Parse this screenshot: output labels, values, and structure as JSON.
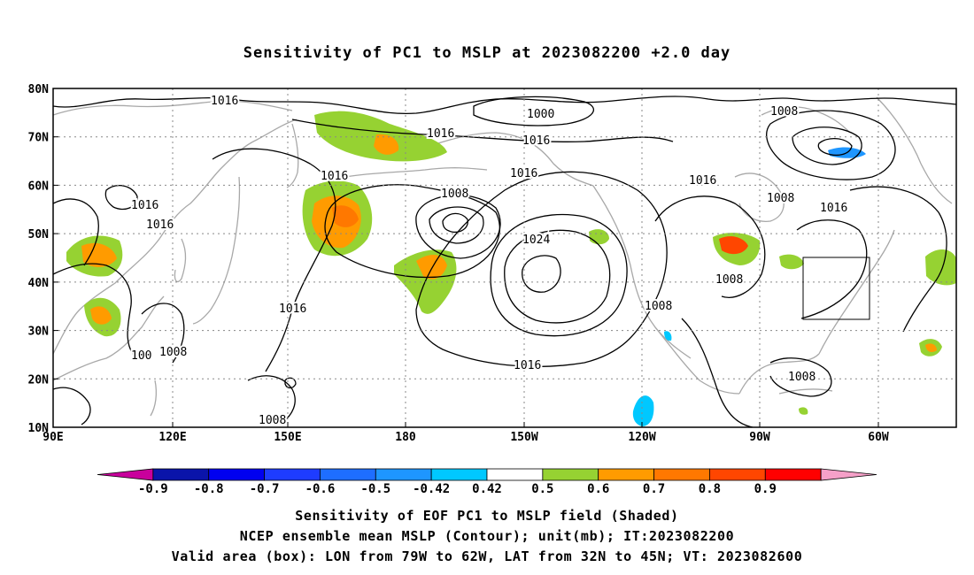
{
  "title": "Sensitivity of PC1 to MSLP at 2023082200 +2.0 day",
  "map": {
    "lat_labels": [
      "80N",
      "70N",
      "60N",
      "50N",
      "40N",
      "30N",
      "20N",
      "10N"
    ],
    "lon_labels": [
      "90E",
      "120E",
      "150E",
      "180",
      "150W",
      "120W",
      "90W",
      "60W"
    ],
    "contour_labels": {
      "c1": "1016",
      "c2": "1016",
      "c3": "1016",
      "c4": "1016",
      "c5": "1016",
      "c6": "1000",
      "c7": "1016",
      "c8": "1016",
      "c9": "1008",
      "c10": "1016",
      "c11": "1024",
      "c12": "1016",
      "c13": "1008",
      "c14": "1016",
      "c15": "1008",
      "c16": "1016",
      "c17": "1008",
      "c18": "1008",
      "c19": "1008",
      "c20": "1008",
      "c21": "1008",
      "c22": "100"
    },
    "valid_box": {
      "lon_min": -79,
      "lon_max": -62,
      "lat_min": 32,
      "lat_max": 45
    }
  },
  "colorbar": {
    "labels": [
      "-0.9",
      "-0.8",
      "-0.7",
      "-0.6",
      "-0.5",
      "-0.42",
      "0.42",
      "0.5",
      "0.6",
      "0.7",
      "0.8",
      "0.9"
    ],
    "colors": [
      "#c8009c",
      "#0a14aa",
      "#0000f0",
      "#1e3cff",
      "#1e6eff",
      "#1e96ff",
      "#00c8ff",
      "#ffffff",
      "#96d232",
      "#ff9b00",
      "#ff7800",
      "#ff4600",
      "#ff0000",
      "#f5a0c8"
    ]
  },
  "captions": {
    "line1": "Sensitivity of EOF PC1 to MSLP field (Shaded)",
    "line2": "NCEP ensemble mean MSLP (Contour); unit(mb); IT:2023082200",
    "line3": "Valid area (box): LON from 79W to 62W, LAT from 32N to 45N; VT: 2023082600"
  }
}
